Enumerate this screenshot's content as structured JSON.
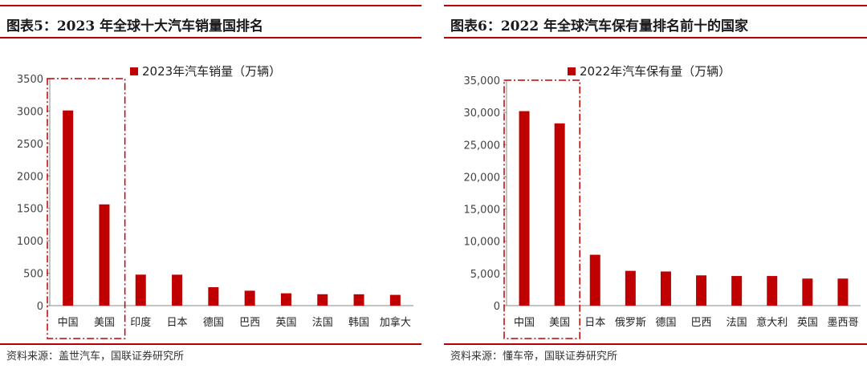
{
  "colors": {
    "accent": "#b40000",
    "bar": "#c00000",
    "highlight_box": "#c00000"
  },
  "chart_data": [
    {
      "type": "bar",
      "title": "图表5：2023 年全球十大汽车销量国排名",
      "source": "资料来源：盖世汽车，国联证券研究所",
      "legend": "2023年汽车销量（万辆）",
      "legend_position": "top-center",
      "categories": [
        "中国",
        "美国",
        "印度",
        "日本",
        "德国",
        "巴西",
        "英国",
        "法国",
        "韩国",
        "加拿大"
      ],
      "values": [
        3009,
        1561,
        478,
        477,
        284,
        230,
        190,
        176,
        175,
        166
      ],
      "ylim": [
        0,
        3500
      ],
      "yticks": [
        0,
        500,
        1000,
        1500,
        2000,
        2500,
        3000,
        3500
      ],
      "ytick_labels": [
        "0",
        "500",
        "1000",
        "1500",
        "2000",
        "2500",
        "3000",
        "3500"
      ],
      "highlight_first_n": 2,
      "xlabel": "",
      "ylabel": "",
      "grid": false
    },
    {
      "type": "bar",
      "title": "图表6：2022 年全球汽车保有量排名前十的国家",
      "source": "资料来源：懂车帝，国联证券研究所",
      "legend": "2022年汽车保有量（万辆）",
      "legend_position": "top-center",
      "categories": [
        "中国",
        "美国",
        "日本",
        "俄罗斯",
        "德国",
        "巴西",
        "法国",
        "意大利",
        "英国",
        "墨西哥"
      ],
      "values": [
        30200,
        28300,
        7900,
        5400,
        5300,
        4700,
        4600,
        4600,
        4200,
        4200
      ],
      "ylim": [
        0,
        35000
      ],
      "yticks": [
        0,
        5000,
        10000,
        15000,
        20000,
        25000,
        30000,
        35000
      ],
      "ytick_labels": [
        "0",
        "5,000",
        "10,000",
        "15,000",
        "20,000",
        "25,000",
        "30,000",
        "35,000"
      ],
      "highlight_first_n": 2,
      "xlabel": "",
      "ylabel": "",
      "grid": false
    }
  ]
}
